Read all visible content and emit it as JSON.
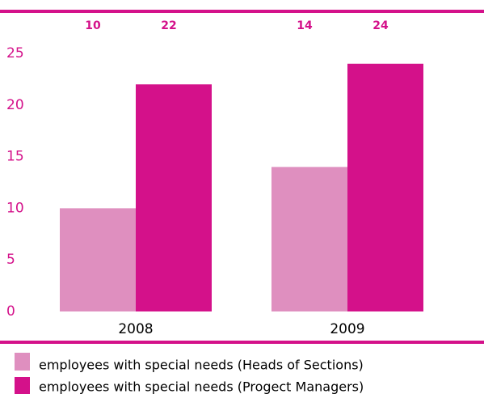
{
  "colors": {
    "accent": "#d4118a",
    "series_light": "#df8fbf",
    "series_dark": "#d4118a",
    "text": "#d4118a"
  },
  "chart_data": {
    "type": "bar",
    "categories": [
      "2008",
      "2009"
    ],
    "series": [
      {
        "name": "employees with special needs (Heads of Sections)",
        "values": [
          10,
          14
        ],
        "color": "#df8fbf"
      },
      {
        "name": "employees with special needs (Progect Managers)",
        "values": [
          22,
          24
        ],
        "color": "#d4118a"
      }
    ],
    "ylim": [
      0,
      25
    ],
    "yticks": [
      0,
      5,
      10,
      15,
      20,
      25
    ],
    "data_labels_position": "top",
    "legend_position": "bottom",
    "grid": false
  }
}
